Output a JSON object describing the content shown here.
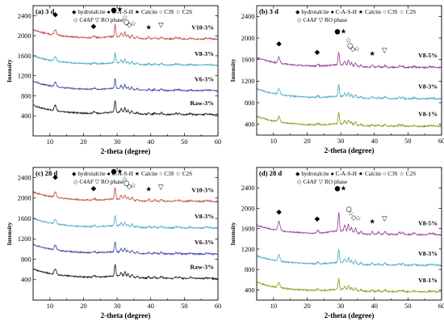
{
  "chart_data": [
    {
      "type": "line",
      "title": "(a) 3 d",
      "xlabel": "2-theta (degree)",
      "ylabel": "Intensity",
      "xlim": [
        5,
        60
      ],
      "ylim": [
        0,
        2600
      ],
      "xticks": [
        10,
        20,
        30,
        40,
        50,
        60
      ],
      "yticks": [
        400,
        800,
        1200,
        1600,
        2000,
        2400
      ],
      "legend": {
        "line1": [
          {
            "symbol": "◆",
            "label": "hydrotalcite"
          },
          {
            "symbol": "●",
            "label": "C-A-S-H"
          },
          {
            "symbol": "★",
            "label": "Calcite"
          },
          {
            "symbol": "○",
            "label": "C3S"
          },
          {
            "symbol": "☆",
            "label": "C2S"
          }
        ],
        "line2": [
          {
            "symbol": "◇",
            "label": "C4AF"
          },
          {
            "symbol": "▽",
            "label": "RO phase"
          }
        ]
      },
      "series": [
        {
          "name": "V10-3%",
          "color": "#c0504d",
          "baseline": 1950,
          "peak_scale": 1.0
        },
        {
          "name": "V8-3%",
          "color": "#4bacc6",
          "baseline": 1430,
          "peak_scale": 0.85
        },
        {
          "name": "V6-3%",
          "color": "#3f4aa8",
          "baseline": 920,
          "peak_scale": 0.85
        },
        {
          "name": "Raw-3%",
          "color": "#1a1a1a",
          "baseline": 440,
          "peak_scale": 1.0
        }
      ],
      "peak_markers": [
        {
          "symbol": "◆",
          "x": 11.6,
          "y": 2380
        },
        {
          "symbol": "◆",
          "x": 23.0,
          "y": 2150
        },
        {
          "symbol": "●",
          "x": 29.0,
          "y": 2470
        },
        {
          "symbol": "★",
          "x": 30.8,
          "y": 2490
        },
        {
          "symbol": "☆",
          "x": 32.3,
          "y": 2320
        },
        {
          "symbol": "○",
          "x": 32.8,
          "y": 2230
        },
        {
          "symbol": "◇",
          "x": 33.6,
          "y": 2180
        },
        {
          "symbol": "☆",
          "x": 34.8,
          "y": 2200
        },
        {
          "symbol": "★",
          "x": 39.4,
          "y": 2120
        },
        {
          "symbol": "▽",
          "x": 43.0,
          "y": 2170
        }
      ]
    },
    {
      "type": "line",
      "title": "(b) 3 d",
      "xlabel": "2-theta (degree)",
      "ylabel": "Intensity",
      "xlim": [
        5,
        60
      ],
      "ylim": [
        200,
        2600
      ],
      "xticks": [
        10,
        20,
        30,
        40,
        50,
        60
      ],
      "yticks": [
        400,
        800,
        1200,
        1600,
        2000,
        2400
      ],
      "legend": {
        "line1": [
          {
            "symbol": "◆",
            "label": "hydrotalcite"
          },
          {
            "symbol": "●",
            "label": "C-A-S-H"
          },
          {
            "symbol": "★",
            "label": "Calcite"
          },
          {
            "symbol": "○",
            "label": "C3S"
          },
          {
            "symbol": "☆",
            "label": "C2S"
          }
        ],
        "line2": [
          {
            "symbol": "◇",
            "label": "C4AF"
          },
          {
            "symbol": "▽",
            "label": "RO phase"
          }
        ]
      },
      "series": [
        {
          "name": "V8-5%",
          "color": "#9b3fa0",
          "baseline": 1470,
          "peak_scale": 1.0
        },
        {
          "name": "V8-3%",
          "color": "#4bacc6",
          "baseline": 890,
          "peak_scale": 0.9
        },
        {
          "name": "V8-1%",
          "color": "#8f9a1e",
          "baseline": 380,
          "peak_scale": 0.9
        }
      ],
      "peak_markers": [
        {
          "symbol": "◆",
          "x": 11.6,
          "y": 1860
        },
        {
          "symbol": "◆",
          "x": 23.0,
          "y": 1700
        },
        {
          "symbol": "●",
          "x": 29.0,
          "y": 2080
        },
        {
          "symbol": "★",
          "x": 30.8,
          "y": 2080
        },
        {
          "symbol": "☆",
          "x": 32.3,
          "y": 1920
        },
        {
          "symbol": "○",
          "x": 32.8,
          "y": 1820
        },
        {
          "symbol": "◇",
          "x": 33.6,
          "y": 1760
        },
        {
          "symbol": "☆",
          "x": 34.8,
          "y": 1760
        },
        {
          "symbol": "★",
          "x": 39.4,
          "y": 1670
        },
        {
          "symbol": "▽",
          "x": 43.0,
          "y": 1730
        }
      ]
    },
    {
      "type": "line",
      "title": "(c) 28 d",
      "xlabel": "2-theta (degree)",
      "ylabel": "Intensity",
      "xlim": [
        5,
        60
      ],
      "ylim": [
        0,
        2600
      ],
      "xticks": [
        10,
        20,
        30,
        40,
        50,
        60
      ],
      "yticks": [
        400,
        800,
        1200,
        1600,
        2000,
        2400
      ],
      "legend": {
        "line1": [
          {
            "symbol": "◆",
            "label": "hydrotalcite"
          },
          {
            "symbol": "●",
            "label": "C-A-S-H"
          },
          {
            "symbol": "★",
            "label": "Calcite"
          },
          {
            "symbol": "○",
            "label": "C3S"
          },
          {
            "symbol": "☆",
            "label": "C2S"
          }
        ],
        "line2": [
          {
            "symbol": "◇",
            "label": "C4AF"
          },
          {
            "symbol": "▽",
            "label": "RO phase"
          }
        ]
      },
      "series": [
        {
          "name": "V10-3%",
          "color": "#c0504d",
          "baseline": 1950,
          "peak_scale": 1.0
        },
        {
          "name": "V8-3%",
          "color": "#4bacc6",
          "baseline": 1430,
          "peak_scale": 0.85
        },
        {
          "name": "V6-3%",
          "color": "#3f4aa8",
          "baseline": 920,
          "peak_scale": 0.85
        },
        {
          "name": "Raw-3%",
          "color": "#1a1a1a",
          "baseline": 440,
          "peak_scale": 1.0
        }
      ],
      "peak_markers": [
        {
          "symbol": "◆",
          "x": 11.6,
          "y": 2370
        },
        {
          "symbol": "◆",
          "x": 23.0,
          "y": 2150
        },
        {
          "symbol": "●",
          "x": 29.0,
          "y": 2480
        },
        {
          "symbol": "★",
          "x": 30.8,
          "y": 2480
        },
        {
          "symbol": "☆",
          "x": 32.3,
          "y": 2330
        },
        {
          "symbol": "○",
          "x": 32.8,
          "y": 2250
        },
        {
          "symbol": "◇",
          "x": 33.6,
          "y": 2190
        },
        {
          "symbol": "☆",
          "x": 34.8,
          "y": 2200
        },
        {
          "symbol": "★",
          "x": 39.4,
          "y": 2130
        },
        {
          "symbol": "▽",
          "x": 43.0,
          "y": 2170
        }
      ]
    },
    {
      "type": "line",
      "title": "(d) 28 d",
      "xlabel": "2-theta (degree)",
      "ylabel": "Intensity",
      "xlim": [
        5,
        60
      ],
      "ylim": [
        200,
        2800
      ],
      "xticks": [
        10,
        20,
        30,
        40,
        50,
        60
      ],
      "yticks": [
        400,
        800,
        1200,
        1600,
        2000,
        2400
      ],
      "legend": {
        "line1": [
          {
            "symbol": "◆",
            "label": "hydrotalcite"
          },
          {
            "symbol": "●",
            "label": "C-A-S-H"
          },
          {
            "symbol": "★",
            "label": "Calcite"
          },
          {
            "symbol": "○",
            "label": "C3S"
          },
          {
            "symbol": "☆",
            "label": "C2S"
          }
        ],
        "line2": [
          {
            "symbol": "◇",
            "label": "C4AF"
          },
          {
            "symbol": "▽",
            "label": "RO phase"
          }
        ]
      },
      "series": [
        {
          "name": "V8-5%",
          "color": "#9b3fa0",
          "baseline": 1500,
          "peak_scale": 1.6
        },
        {
          "name": "V8-3%",
          "color": "#4bacc6",
          "baseline": 900,
          "peak_scale": 1.1
        },
        {
          "name": "V8-1%",
          "color": "#8f9a1e",
          "baseline": 380,
          "peak_scale": 0.9
        }
      ],
      "peak_markers": [
        {
          "symbol": "◆",
          "x": 11.6,
          "y": 1890
        },
        {
          "symbol": "◆",
          "x": 23.0,
          "y": 1750
        },
        {
          "symbol": "●",
          "x": 29.0,
          "y": 2350
        },
        {
          "symbol": "★",
          "x": 30.8,
          "y": 2350
        },
        {
          "symbol": "○",
          "x": 32.4,
          "y": 1940
        },
        {
          "symbol": "☆",
          "x": 33.0,
          "y": 1860
        },
        {
          "symbol": "◇",
          "x": 33.9,
          "y": 1780
        },
        {
          "symbol": "☆",
          "x": 35.2,
          "y": 1760
        },
        {
          "symbol": "★",
          "x": 39.4,
          "y": 1700
        },
        {
          "symbol": "▽",
          "x": 43.0,
          "y": 1750
        }
      ]
    }
  ]
}
